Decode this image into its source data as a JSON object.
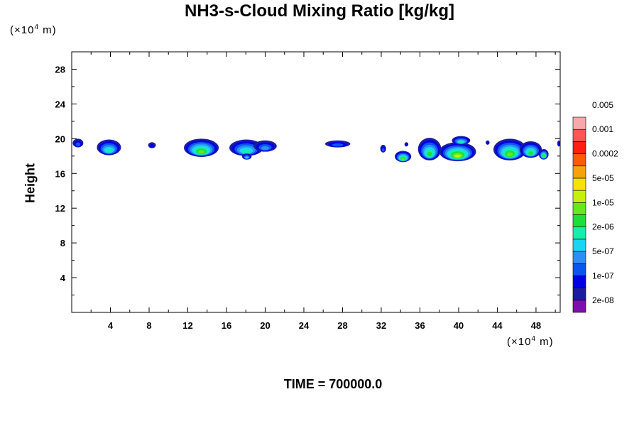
{
  "chart_data": {
    "type": "heatmap",
    "title": "NH3-s-Cloud Mixing Ratio [kg/kg]",
    "ylabel": "Height",
    "xlabel": "",
    "x_unit_label": "(×10⁴ m)",
    "y_unit_label": "(×10⁴ m)",
    "footer": "TIME = 700000.0",
    "xlim": [
      0,
      50.5
    ],
    "ylim": [
      0,
      30
    ],
    "x_ticks": [
      4,
      8,
      12,
      16,
      20,
      24,
      28,
      32,
      36,
      40,
      44,
      48
    ],
    "y_ticks": [
      4,
      8,
      12,
      16,
      20,
      24,
      28
    ],
    "colorbar": {
      "labels": [
        "0.005",
        "0.001",
        "0.0002",
        "5e-05",
        "1e-05",
        "2e-06",
        "5e-07",
        "1e-07",
        "2e-08"
      ],
      "colors": [
        "#7e0fae",
        "#1c1ca0",
        "#0000e6",
        "#0b56ee",
        "#2d8ef5",
        "#1ad6f2",
        "#14efac",
        "#1ede3a",
        "#66e81c",
        "#c5f00d",
        "#f6e20a",
        "#f6a30b",
        "#ff5a06",
        "#ff1f10",
        "#ff5555",
        "#f7a8a8"
      ]
    },
    "cloud_patches": [
      {
        "x0": 0.1,
        "x1": 1.2,
        "y0": 19.0,
        "y1": 20.0,
        "peak_level": 3
      },
      {
        "x0": 2.6,
        "x1": 5.1,
        "y0": 18.1,
        "y1": 19.9,
        "peak_level": 6
      },
      {
        "x0": 7.9,
        "x1": 8.7,
        "y0": 18.9,
        "y1": 19.6,
        "peak_level": 2
      },
      {
        "x0": 11.6,
        "x1": 15.2,
        "y0": 17.9,
        "y1": 20.0,
        "peak_level": 8
      },
      {
        "x0": 16.3,
        "x1": 19.8,
        "y0": 18.0,
        "y1": 19.9,
        "peak_level": 6
      },
      {
        "x0": 18.8,
        "x1": 21.2,
        "y0": 18.5,
        "y1": 19.8,
        "peak_level": 4
      },
      {
        "x0": 17.6,
        "x1": 18.6,
        "y0": 17.6,
        "y1": 18.3,
        "peak_level": 5
      },
      {
        "x0": 26.2,
        "x1": 28.8,
        "y0": 19.0,
        "y1": 19.8,
        "peak_level": 3
      },
      {
        "x0": 31.9,
        "x1": 32.5,
        "y0": 18.4,
        "y1": 19.3,
        "peak_level": 3
      },
      {
        "x0": 33.4,
        "x1": 35.1,
        "y0": 17.3,
        "y1": 18.6,
        "peak_level": 8
      },
      {
        "x0": 35.8,
        "x1": 38.2,
        "y0": 17.5,
        "y1": 20.1,
        "peak_level": 7
      },
      {
        "x0": 38.0,
        "x1": 41.8,
        "y0": 17.4,
        "y1": 19.6,
        "peak_level": 9
      },
      {
        "x0": 39.3,
        "x1": 41.2,
        "y0": 19.3,
        "y1": 20.3,
        "peak_level": 6
      },
      {
        "x0": 43.6,
        "x1": 47.0,
        "y0": 17.5,
        "y1": 20.0,
        "peak_level": 8
      },
      {
        "x0": 46.3,
        "x1": 48.6,
        "y0": 17.8,
        "y1": 19.7,
        "peak_level": 7
      },
      {
        "x0": 48.3,
        "x1": 49.3,
        "y0": 17.6,
        "y1": 18.8,
        "peak_level": 8
      },
      {
        "x0": 34.4,
        "x1": 34.8,
        "y0": 19.1,
        "y1": 19.6,
        "peak_level": 2
      },
      {
        "x0": 42.8,
        "x1": 43.2,
        "y0": 19.3,
        "y1": 19.8,
        "peak_level": 2
      },
      {
        "x0": 50.2,
        "x1": 50.5,
        "y0": 19.1,
        "y1": 19.8,
        "peak_level": 2
      }
    ]
  }
}
